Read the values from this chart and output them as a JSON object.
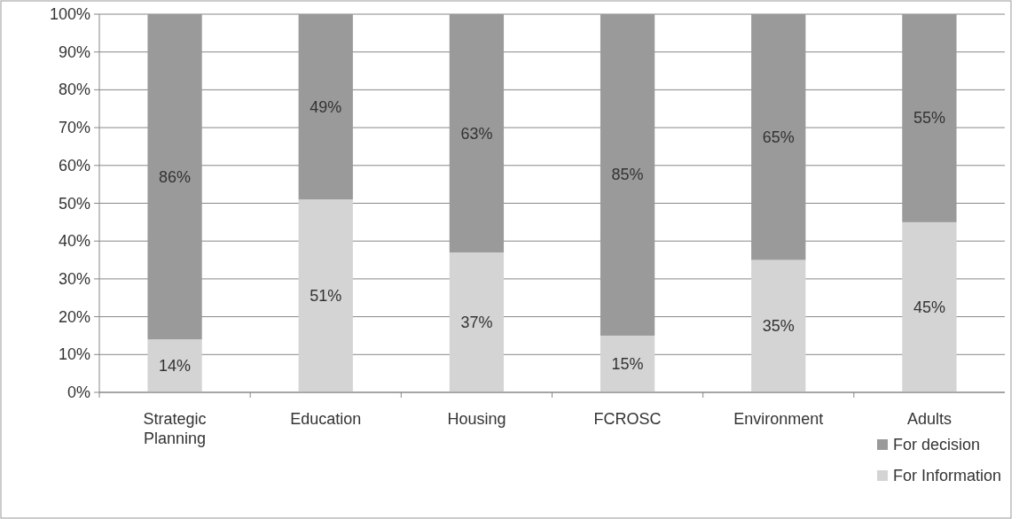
{
  "chart_data": {
    "type": "bar",
    "stacked": true,
    "categories": [
      "Strategic Planning",
      "Education",
      "Housing",
      "FCROSC",
      "Environment",
      "Adults"
    ],
    "series": [
      {
        "name": "For Information",
        "color": "#d4d4d4",
        "values": [
          14,
          51,
          37,
          15,
          35,
          45
        ],
        "value_labels": [
          "14%",
          "51%",
          "37%",
          "15%",
          "35%",
          "45%"
        ]
      },
      {
        "name": "For decision",
        "color": "#9a9a9a",
        "values": [
          86,
          49,
          63,
          85,
          65,
          55
        ],
        "value_labels": [
          "86%",
          "49%",
          "63%",
          "85%",
          "65%",
          "55%"
        ]
      }
    ],
    "ylim": [
      0,
      100
    ],
    "yticks": [
      {
        "value": 0,
        "label": "0%"
      },
      {
        "value": 10,
        "label": "10%"
      },
      {
        "value": 20,
        "label": "20%"
      },
      {
        "value": 30,
        "label": "30%"
      },
      {
        "value": 40,
        "label": "40%"
      },
      {
        "value": 50,
        "label": "50%"
      },
      {
        "value": 60,
        "label": "60%"
      },
      {
        "value": 70,
        "label": "70%"
      },
      {
        "value": 80,
        "label": "80%"
      },
      {
        "value": 90,
        "label": "90%"
      },
      {
        "value": 100,
        "label": "100%"
      }
    ],
    "grid": "y",
    "legend": "bottom right"
  }
}
